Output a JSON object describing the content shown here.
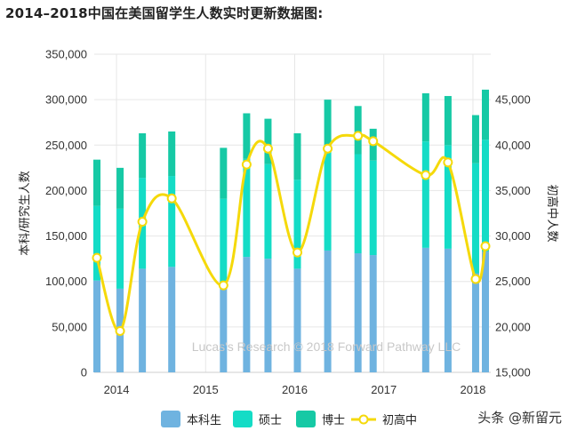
{
  "title": "2014–2018中国在美国留学生人数实时更新数据图:",
  "watermark": "Lucas's Research © 2018 Forward Pathway LLC",
  "brand": "头条 @新留元",
  "colors": {
    "bachelor": "#6fb3e0",
    "master": "#14dcc6",
    "phd": "#16c9a5",
    "line": "#f5d90a",
    "grid": "#e6e6e6"
  },
  "chart_data": {
    "type": "bar",
    "x_ticks": [
      {
        "label": "2014",
        "x": 2014.0
      },
      {
        "label": "2015",
        "x": 2015.0
      },
      {
        "label": "2016",
        "x": 2016.0
      },
      {
        "label": "2017",
        "x": 2017.0
      },
      {
        "label": "2018",
        "x": 2018.0
      }
    ],
    "x_range": [
      2013.75,
      2018.2
    ],
    "ylabel_left": "本科/研究生人数",
    "ylabel_right": "初高中人数",
    "ylim_left": [
      0,
      350000
    ],
    "yticks_left": [
      "0",
      "50,000",
      "100,000",
      "150,000",
      "200,000",
      "250,000",
      "300,000",
      "350,000"
    ],
    "ylim_right": [
      15000,
      45000
    ],
    "yticks_right": [
      "15,000",
      "20,000",
      "25,000",
      "30,000",
      "35,000",
      "40,000",
      "45,000"
    ],
    "grid": true,
    "legend": [
      "本科生",
      "硕士",
      "博士",
      "初高中"
    ],
    "legend_position": "bottom",
    "bars": [
      {
        "x": 2013.78,
        "bachelor": 101000,
        "master": 82000,
        "phd": 51000
      },
      {
        "x": 2014.04,
        "bachelor": 92000,
        "master": 88000,
        "phd": 45000
      },
      {
        "x": 2014.29,
        "bachelor": 114000,
        "master": 100000,
        "phd": 49000
      },
      {
        "x": 2014.62,
        "bachelor": 116000,
        "master": 100000,
        "phd": 49000
      },
      {
        "x": 2015.2,
        "bachelor": 94000,
        "master": 97000,
        "phd": 56000
      },
      {
        "x": 2015.46,
        "bachelor": 127000,
        "master": 108000,
        "phd": 50000
      },
      {
        "x": 2015.7,
        "bachelor": 125000,
        "master": 104000,
        "phd": 50000
      },
      {
        "x": 2016.03,
        "bachelor": 114000,
        "master": 98000,
        "phd": 51000
      },
      {
        "x": 2016.37,
        "bachelor": 134000,
        "master": 113000,
        "phd": 53000
      },
      {
        "x": 2016.71,
        "bachelor": 131000,
        "master": 109000,
        "phd": 53000
      },
      {
        "x": 2016.88,
        "bachelor": 129000,
        "master": 104000,
        "phd": 35000
      },
      {
        "x": 2017.47,
        "bachelor": 137000,
        "master": 117000,
        "phd": 53000
      },
      {
        "x": 2017.72,
        "bachelor": 136000,
        "master": 114000,
        "phd": 54000
      },
      {
        "x": 2018.03,
        "bachelor": 109000,
        "master": 121000,
        "phd": 53000
      },
      {
        "x": 2018.14,
        "bachelor": 133000,
        "master": 123000,
        "phd": 55000
      }
    ],
    "line": {
      "name": "初高中",
      "points": [
        {
          "x": 2013.78,
          "y": 25800
        },
        {
          "x": 2014.04,
          "y": 18900
        },
        {
          "x": 2014.29,
          "y": 29200
        },
        {
          "x": 2014.62,
          "y": 31400
        },
        {
          "x": 2015.2,
          "y": 23200
        },
        {
          "x": 2015.46,
          "y": 34600
        },
        {
          "x": 2015.7,
          "y": 36100
        },
        {
          "x": 2016.03,
          "y": 26300
        },
        {
          "x": 2016.37,
          "y": 36100
        },
        {
          "x": 2016.71,
          "y": 37300
        },
        {
          "x": 2016.88,
          "y": 36800
        },
        {
          "x": 2017.47,
          "y": 33600
        },
        {
          "x": 2017.72,
          "y": 34800
        },
        {
          "x": 2018.03,
          "y": 23800
        },
        {
          "x": 2018.14,
          "y": 26900
        }
      ]
    }
  }
}
